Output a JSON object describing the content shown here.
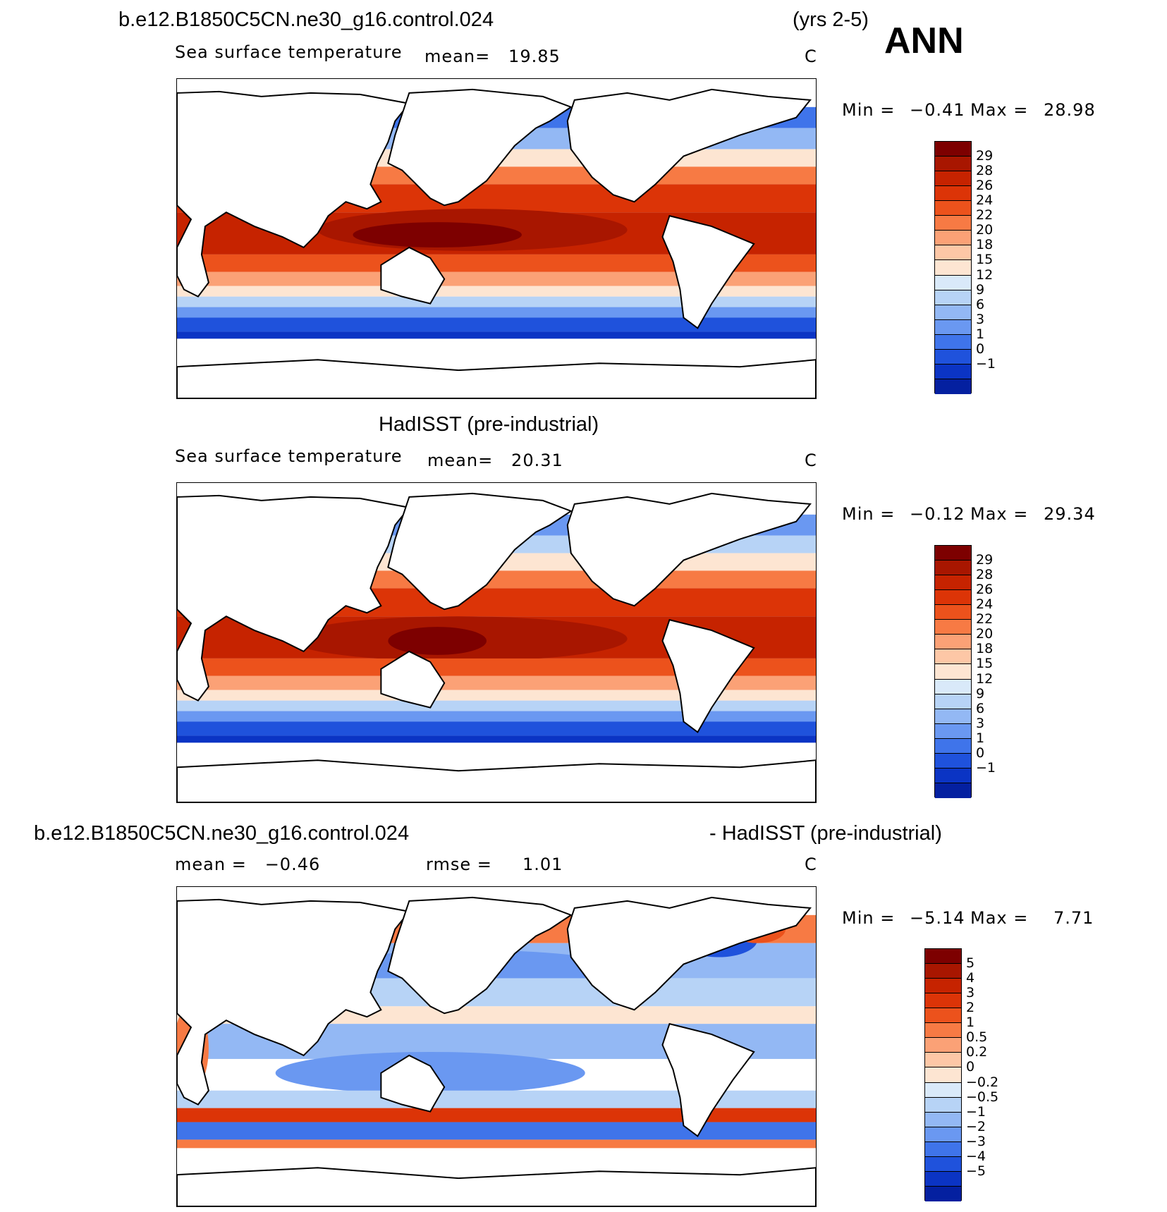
{
  "header": {
    "case_name": "b.e12.B1850C5CN.ne30_g16.control.024",
    "years": "(yrs 2-5)",
    "season": "ANN"
  },
  "panels": [
    {
      "id": "model",
      "variable": "Sea surface temperature",
      "mean_text": "mean=   19.85",
      "units": "C",
      "min_label": "Min =",
      "min_value": "−0.41",
      "max_label": "Max =",
      "max_value": "28.98",
      "colorbar": {
        "labels": [
          "29",
          "28",
          "26",
          "24",
          "22",
          "20",
          "18",
          "15",
          "12",
          "9",
          "6",
          "3",
          "1",
          "0",
          "−1"
        ],
        "colors": [
          "#7d0000",
          "#a81600",
          "#c62300",
          "#dc3407",
          "#ec521c",
          "#f77a44",
          "#fba176",
          "#fdc7a6",
          "#fde5d2",
          "#d9e9f9",
          "#b7d3f6",
          "#93b8f4",
          "#6a98f1",
          "#3f74ea",
          "#1f52dc",
          "#0b34c4",
          "#0420a0"
        ]
      }
    },
    {
      "id": "obs",
      "title": "HadISST (pre-industrial)",
      "variable": "Sea surface temperature",
      "mean_text": "mean=   20.31",
      "units": "C",
      "min_label": "Min =",
      "min_value": "−0.12",
      "max_label": "Max =",
      "max_value": "29.34",
      "colorbar": {
        "labels": [
          "29",
          "28",
          "26",
          "24",
          "22",
          "20",
          "18",
          "15",
          "12",
          "9",
          "6",
          "3",
          "1",
          "0",
          "−1"
        ],
        "colors": [
          "#7d0000",
          "#a81600",
          "#c62300",
          "#dc3407",
          "#ec521c",
          "#f77a44",
          "#fba176",
          "#fdc7a6",
          "#fde5d2",
          "#d9e9f9",
          "#b7d3f6",
          "#93b8f4",
          "#6a98f1",
          "#3f74ea",
          "#1f52dc",
          "#0b34c4",
          "#0420a0"
        ]
      }
    },
    {
      "id": "diff",
      "title_left": "b.e12.B1850C5CN.ne30_g16.control.024",
      "title_right": "- HadISST (pre-industrial)",
      "mean_text": "mean =   −0.46",
      "rmse_text": "rmse =     1.01",
      "units": "C",
      "min_label": "Min =",
      "min_value": "−5.14",
      "max_label": "Max =",
      "max_value": "7.71",
      "colorbar": {
        "labels": [
          "5",
          "4",
          "3",
          "2",
          "1",
          "0.5",
          "0.2",
          "0",
          "−0.2",
          "−0.5",
          "−1",
          "−2",
          "−3",
          "−4",
          "−5"
        ],
        "colors": [
          "#7d0000",
          "#a81600",
          "#c62300",
          "#dc3407",
          "#ec521c",
          "#f77a44",
          "#fba176",
          "#fdc7a6",
          "#fde5d2",
          "#d9e9f9",
          "#b7d3f6",
          "#93b8f4",
          "#6a98f1",
          "#3f74ea",
          "#1f52dc",
          "#0b34c4",
          "#0420a0"
        ]
      }
    }
  ]
}
